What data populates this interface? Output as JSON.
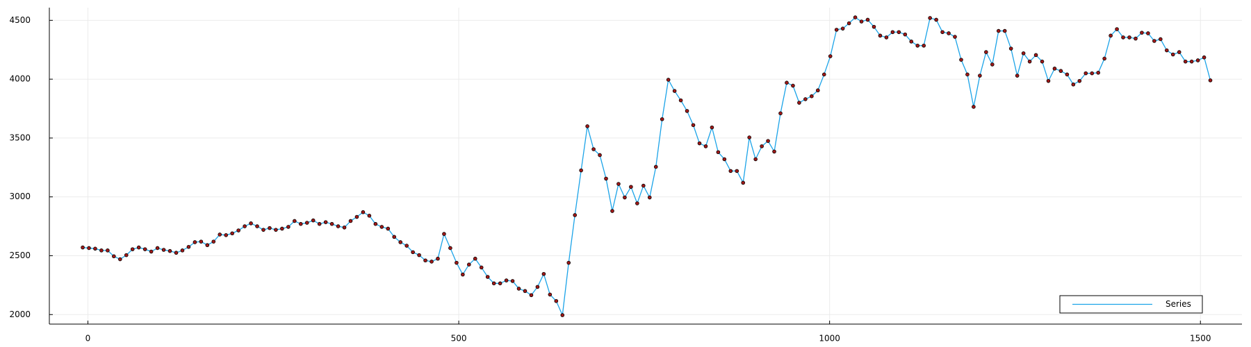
{
  "chart_data": {
    "type": "line",
    "x": [
      -7,
      1.4,
      9.8,
      18.2,
      26.6,
      35,
      43.4,
      51.8,
      60.2,
      68.6,
      77,
      85.4,
      93.8,
      102.2,
      110.6,
      119,
      127.4,
      135.8,
      144.2,
      152.6,
      161,
      169.4,
      177.8,
      186.2,
      194.6,
      203,
      211.4,
      219.8,
      228.2,
      236.6,
      245,
      253.4,
      261.8,
      270.2,
      278.6,
      287,
      295.4,
      303.8,
      312.2,
      320.6,
      329,
      337.4,
      345.8,
      354.2,
      362.6,
      371,
      379.4,
      387.8,
      396.2,
      404.6,
      413,
      421.4,
      429.8,
      438.2,
      446.6,
      455,
      463.4,
      471.8,
      480.2,
      488.6,
      497,
      505.4,
      513.8,
      522.2,
      530.6,
      539,
      547.4,
      555.8,
      564.2,
      572.6,
      581,
      589.4,
      597.8,
      606.2,
      614.6,
      623,
      631.4,
      639.8,
      648.2,
      656.6,
      665,
      673.4,
      681.8,
      690.2,
      698.6,
      707,
      715.4,
      723.8,
      732.2,
      740.6,
      749,
      757.4,
      765.8,
      774.2,
      782.6,
      791,
      799.4,
      807.8,
      816.2,
      824.6,
      833,
      841.4,
      849.8,
      858.2,
      866.6,
      875,
      883.4,
      891.8,
      900.2,
      908.6,
      917,
      925.4,
      933.8,
      942.2,
      950.6,
      959,
      967.4,
      975.8,
      984.2,
      992.6,
      1001,
      1009.4,
      1017.8,
      1026.2,
      1034.6,
      1043,
      1051.4,
      1059.8,
      1068.2,
      1076.6,
      1085,
      1093.4,
      1101.8,
      1110.2,
      1118.6,
      1127,
      1135.4,
      1143.8,
      1152.2,
      1160.6,
      1169,
      1177.4,
      1185.8,
      1194.2,
      1202.6,
      1211,
      1219.4,
      1227.8,
      1236.2,
      1244.6,
      1253,
      1261.4,
      1269.8,
      1278.2,
      1286.6,
      1295,
      1303.4,
      1311.8,
      1320.2,
      1328.6,
      1337,
      1345.4,
      1353.8,
      1362.2,
      1370.6,
      1379,
      1387.4,
      1395.8,
      1404.2,
      1412.6,
      1421,
      1429.4,
      1437.8,
      1446.2,
      1454.6,
      1463,
      1471.4,
      1479.8,
      1488.2,
      1496.6,
      1505,
      1513.4
    ],
    "series": [
      {
        "name": "Series",
        "color": "#1aa3e8",
        "marker_color": "#a01818",
        "values": [
          2570,
          2565,
          2560,
          2545,
          2545,
          2495,
          2470,
          2505,
          2555,
          2570,
          2555,
          2535,
          2565,
          2550,
          2540,
          2525,
          2545,
          2575,
          2615,
          2620,
          2590,
          2620,
          2680,
          2675,
          2690,
          2715,
          2750,
          2775,
          2750,
          2720,
          2735,
          2720,
          2730,
          2745,
          2795,
          2770,
          2780,
          2800,
          2770,
          2785,
          2770,
          2750,
          2740,
          2795,
          2830,
          2870,
          2840,
          2770,
          2745,
          2730,
          2660,
          2615,
          2585,
          2530,
          2505,
          2460,
          2450,
          2475,
          2685,
          2565,
          2440,
          2340,
          2425,
          2475,
          2400,
          2320,
          2265,
          2265,
          2290,
          2285,
          2220,
          2200,
          2165,
          2235,
          2345,
          2170,
          2115,
          1995,
          2440,
          2845,
          3225,
          3600,
          3405,
          3355,
          3155,
          2880,
          3110,
          2995,
          3085,
          2945,
          3095,
          2995,
          3255,
          3660,
          3995,
          3900,
          3820,
          3730,
          3610,
          3455,
          3430,
          3590,
          3380,
          3320,
          3220,
          3220,
          3120,
          3505,
          3320,
          3430,
          3475,
          3385,
          3710,
          3970,
          3945,
          3800,
          3830,
          3855,
          3905,
          4040,
          4195,
          4420,
          4430,
          4475,
          4525,
          4490,
          4505,
          4445,
          4370,
          4355,
          4400,
          4400,
          4380,
          4320,
          4285,
          4285,
          4520,
          4505,
          4400,
          4390,
          4360,
          4165,
          4040,
          3765,
          4030,
          4230,
          4125,
          4410,
          4410,
          4260,
          4030,
          4220,
          4150,
          4205,
          4150,
          3985,
          4090,
          4070,
          4040,
          3955,
          3985,
          4050,
          4050,
          4055,
          4175,
          4370,
          4425,
          4355,
          4355,
          4345,
          4395,
          4390,
          4325,
          4340,
          4245,
          4210,
          4230,
          4150,
          4150,
          4160,
          4185,
          3990
        ]
      }
    ],
    "xlim": [
      -52,
      1556
    ],
    "xticks": [
      0,
      500,
      1000,
      1500
    ],
    "ylim": [
      1919,
      4608
    ],
    "yticks": [
      2000,
      2500,
      3000,
      3500,
      4000,
      4500
    ],
    "grid": true,
    "legend": "bottom right"
  }
}
